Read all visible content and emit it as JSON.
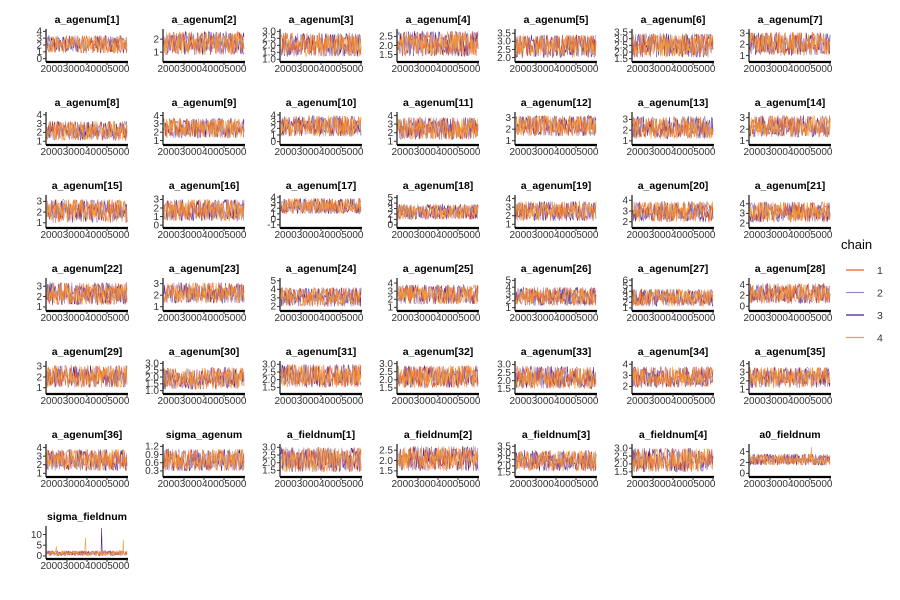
{
  "chart_data": {
    "type": "line",
    "title": "",
    "xlabel": "",
    "ylabel": "",
    "x_ticks": [
      "2000",
      "3000",
      "4000",
      "5000"
    ],
    "x_tick_label": "2000300040005000",
    "xlim": [
      1001,
      5000
    ],
    "grid": false,
    "legend": {
      "title": "chain",
      "placement": "right",
      "entries": [
        {
          "name": "1",
          "color": "#e8612c"
        },
        {
          "name": "2",
          "color": "#9e86c9"
        },
        {
          "name": "3",
          "color": "#4b1f8a"
        },
        {
          "name": "4",
          "color": "#f39c38"
        }
      ]
    },
    "panels": [
      {
        "name": "a_agenum[1]",
        "y_ticks": [
          "0",
          "1",
          "2",
          "3",
          "4"
        ],
        "ylim": [
          -0.2,
          4.2
        ],
        "range": [
          0.8,
          3.4
        ]
      },
      {
        "name": "a_agenum[2]",
        "y_ticks": [
          "1",
          "2"
        ],
        "ylim": [
          0.4,
          2.7
        ],
        "range": [
          0.8,
          2.6
        ]
      },
      {
        "name": "a_agenum[3]",
        "y_ticks": [
          "1.0",
          "1.5",
          "2.0",
          "2.5",
          "3.0"
        ],
        "ylim": [
          0.95,
          3.1
        ],
        "range": [
          1.2,
          2.9
        ]
      },
      {
        "name": "a_agenum[4]",
        "y_ticks": [
          "1.5",
          "2.0",
          "2.5"
        ],
        "ylim": [
          1.2,
          2.85
        ],
        "range": [
          1.4,
          2.8
        ]
      },
      {
        "name": "a_agenum[5]",
        "y_ticks": [
          "2.0",
          "2.5",
          "3.0",
          "3.5"
        ],
        "ylim": [
          1.85,
          3.7
        ],
        "range": [
          2.0,
          3.4
        ]
      },
      {
        "name": "a_agenum[6]",
        "y_ticks": [
          "1.5",
          "2.0",
          "2.5",
          "3.0",
          "3.5"
        ],
        "ylim": [
          1.4,
          3.65
        ],
        "range": [
          1.6,
          3.4
        ]
      },
      {
        "name": "a_agenum[7]",
        "y_ticks": [
          "1",
          "2",
          "3"
        ],
        "ylim": [
          0.6,
          3.3
        ],
        "range": [
          1.0,
          3.1
        ]
      },
      {
        "name": "a_agenum[8]",
        "y_ticks": [
          "1",
          "2",
          "3",
          "4"
        ],
        "ylim": [
          0.8,
          4.2
        ],
        "range": [
          1.1,
          3.3
        ]
      },
      {
        "name": "a_agenum[9]",
        "y_ticks": [
          "1",
          "2",
          "3",
          "4"
        ],
        "ylim": [
          0.7,
          4.3
        ],
        "range": [
          1.3,
          3.7
        ]
      },
      {
        "name": "a_agenum[10]",
        "y_ticks": [
          "0",
          "1",
          "2",
          "3",
          "4"
        ],
        "ylim": [
          -0.2,
          4.3
        ],
        "range": [
          0.8,
          3.9
        ]
      },
      {
        "name": "a_agenum[11]",
        "y_ticks": [
          "1",
          "2",
          "3",
          "4"
        ],
        "ylim": [
          0.8,
          4.3
        ],
        "range": [
          1.2,
          3.8
        ]
      },
      {
        "name": "a_agenum[12]",
        "y_ticks": [
          "1",
          "2",
          "3"
        ],
        "ylim": [
          0.8,
          3.4
        ],
        "range": [
          1.4,
          3.2
        ]
      },
      {
        "name": "a_agenum[13]",
        "y_ticks": [
          "1",
          "2",
          "3"
        ],
        "ylim": [
          0.8,
          3.6
        ],
        "range": [
          1.2,
          3.3
        ]
      },
      {
        "name": "a_agenum[14]",
        "y_ticks": [
          "1",
          "2",
          "3"
        ],
        "ylim": [
          0.8,
          3.4
        ],
        "range": [
          1.3,
          3.2
        ]
      },
      {
        "name": "a_agenum[15]",
        "y_ticks": [
          "1",
          "2",
          "3"
        ],
        "ylim": [
          0.7,
          3.5
        ],
        "range": [
          1.0,
          3.2
        ]
      },
      {
        "name": "a_agenum[16]",
        "y_ticks": [
          "0",
          "1",
          "2",
          "3"
        ],
        "ylim": [
          -0.1,
          3.4
        ],
        "range": [
          0.5,
          3.0
        ]
      },
      {
        "name": "a_agenum[17]",
        "y_ticks": [
          "-1",
          "0",
          "1",
          "2",
          "3",
          "4"
        ],
        "ylim": [
          -1.2,
          4.2
        ],
        "range": [
          1.0,
          3.8
        ]
      },
      {
        "name": "a_agenum[18]",
        "y_ticks": [
          "0",
          "1",
          "2",
          "3",
          "4",
          "5"
        ],
        "ylim": [
          -0.2,
          5.3
        ],
        "range": [
          1.0,
          3.8
        ]
      },
      {
        "name": "a_agenum[19]",
        "y_ticks": [
          "1",
          "2",
          "3",
          "4"
        ],
        "ylim": [
          0.8,
          4.3
        ],
        "range": [
          1.4,
          3.7
        ]
      },
      {
        "name": "a_agenum[20]",
        "y_ticks": [
          "2",
          "3",
          "4"
        ],
        "ylim": [
          1.6,
          4.4
        ],
        "range": [
          2.0,
          3.9
        ]
      },
      {
        "name": "a_agenum[21]",
        "y_ticks": [
          "2",
          "3",
          "4"
        ],
        "ylim": [
          1.7,
          4.8
        ],
        "range": [
          2.1,
          4.2
        ]
      },
      {
        "name": "a_agenum[22]",
        "y_ticks": [
          "1",
          "2",
          "3"
        ],
        "ylim": [
          0.8,
          3.7
        ],
        "range": [
          1.2,
          3.4
        ]
      },
      {
        "name": "a_agenum[23]",
        "y_ticks": [
          "1",
          "2",
          "3"
        ],
        "ylim": [
          0.8,
          3.4
        ],
        "range": [
          1.3,
          3.1
        ]
      },
      {
        "name": "a_agenum[24]",
        "y_ticks": [
          "2",
          "3",
          "4",
          "5"
        ],
        "ylim": [
          1.7,
          5.2
        ],
        "range": [
          2.0,
          4.2
        ]
      },
      {
        "name": "a_agenum[25]",
        "y_ticks": [
          "1",
          "2",
          "3",
          "4"
        ],
        "ylim": [
          0.8,
          4.5
        ],
        "range": [
          1.4,
          3.8
        ]
      },
      {
        "name": "a_agenum[26]",
        "y_ticks": [
          "1",
          "2",
          "3",
          "4",
          "5"
        ],
        "ylim": [
          0.8,
          5.2
        ],
        "range": [
          1.3,
          4.0
        ]
      },
      {
        "name": "a_agenum[27]",
        "y_ticks": [
          "1",
          "2",
          "3",
          "4",
          "5",
          "6"
        ],
        "ylim": [
          0.8,
          6.2
        ],
        "range": [
          1.3,
          4.4
        ]
      },
      {
        "name": "a_agenum[28]",
        "y_ticks": [
          "0",
          "2",
          "4"
        ],
        "ylim": [
          -0.5,
          5.0
        ],
        "range": [
          0.5,
          4.2
        ]
      },
      {
        "name": "a_agenum[29]",
        "y_ticks": [
          "1",
          "2",
          "3"
        ],
        "ylim": [
          0.6,
          3.4
        ],
        "range": [
          1.0,
          3.1
        ]
      },
      {
        "name": "a_agenum[30]",
        "y_ticks": [
          "1.0",
          "1.5",
          "2.0",
          "2.5",
          "3.0"
        ],
        "ylim": [
          0.9,
          3.1
        ],
        "range": [
          1.1,
          2.7
        ]
      },
      {
        "name": "a_agenum[31]",
        "y_ticks": [
          "1.5",
          "2.0",
          "2.5",
          "3.0"
        ],
        "ylim": [
          1.2,
          3.15
        ],
        "range": [
          1.5,
          3.0
        ]
      },
      {
        "name": "a_agenum[32]",
        "y_ticks": [
          "1.5",
          "2.0",
          "2.5",
          "3.0"
        ],
        "ylim": [
          1.25,
          3.1
        ],
        "range": [
          1.5,
          2.9
        ]
      },
      {
        "name": "a_agenum[33]",
        "y_ticks": [
          "1.5",
          "2.0",
          "2.5",
          "3.0"
        ],
        "ylim": [
          1.3,
          3.15
        ],
        "range": [
          1.5,
          2.9
        ]
      },
      {
        "name": "a_agenum[34]",
        "y_ticks": [
          "2",
          "3",
          "4"
        ],
        "ylim": [
          1.5,
          4.2
        ],
        "range": [
          1.9,
          3.8
        ]
      },
      {
        "name": "a_agenum[35]",
        "y_ticks": [
          "1",
          "2",
          "3",
          "4"
        ],
        "ylim": [
          0.7,
          4.2
        ],
        "range": [
          1.2,
          3.6
        ]
      },
      {
        "name": "a_agenum[36]",
        "y_ticks": [
          "1",
          "2",
          "3",
          "4"
        ],
        "ylim": [
          0.8,
          4.3
        ],
        "range": [
          1.3,
          3.8
        ]
      },
      {
        "name": "sigma_agenum",
        "y_ticks": [
          "0.3",
          "0.6",
          "0.9",
          "1.2"
        ],
        "ylim": [
          0.15,
          1.25
        ],
        "range": [
          0.3,
          1.1
        ]
      },
      {
        "name": "a_fieldnum[1]",
        "y_ticks": [
          "1.5",
          "2.0",
          "2.5",
          "3.0"
        ],
        "ylim": [
          1.2,
          3.15
        ],
        "range": [
          1.4,
          3.0
        ]
      },
      {
        "name": "a_fieldnum[2]",
        "y_ticks": [
          "1.5",
          "2.0",
          "2.5"
        ],
        "ylim": [
          1.3,
          2.75
        ],
        "range": [
          1.5,
          2.7
        ]
      },
      {
        "name": "a_fieldnum[3]",
        "y_ticks": [
          "1.5",
          "2.0",
          "2.5",
          "3.0",
          "3.5"
        ],
        "ylim": [
          1.3,
          3.6
        ],
        "range": [
          1.6,
          3.2
        ]
      },
      {
        "name": "a_fieldnum[4]",
        "y_ticks": [
          "1.5",
          "2.0",
          "2.5",
          "3.0"
        ],
        "ylim": [
          1.3,
          3.2
        ],
        "range": [
          1.5,
          3.0
        ]
      },
      {
        "name": "a0_fieldnum",
        "y_ticks": [
          "0",
          "2",
          "4"
        ],
        "ylim": [
          -0.3,
          5.2
        ],
        "range": [
          1.5,
          3.6
        ],
        "spikes": [
          [
            0.77,
            4.8
          ]
        ]
      },
      {
        "name": "sigma_fieldnum",
        "y_ticks": [
          "0",
          "5",
          "10"
        ],
        "ylim": [
          -0.5,
          13.5
        ],
        "range": [
          0.1,
          2.5
        ],
        "spikes": [
          [
            0.12,
            4.5
          ],
          [
            0.48,
            8.5
          ],
          [
            0.68,
            13.0
          ],
          [
            0.95,
            7.5
          ]
        ]
      }
    ]
  }
}
